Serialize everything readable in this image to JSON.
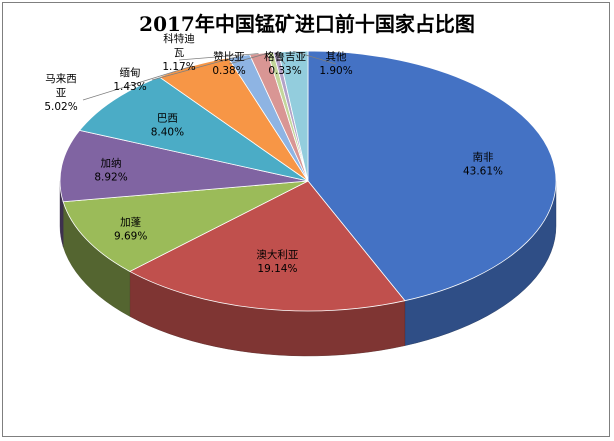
{
  "chart_data": {
    "type": "pie",
    "title": "2017年中国锰矿进口前十国家占比图",
    "unit": "%",
    "slices": [
      {
        "name": "南非",
        "value": 43.61,
        "label": "43.61%",
        "color": "#4472c4"
      },
      {
        "name": "澳大利亚",
        "value": 19.14,
        "label": "19.14%",
        "color": "#c0504d"
      },
      {
        "name": "加蓬",
        "value": 9.69,
        "label": "9.69%",
        "color": "#9bbb59"
      },
      {
        "name": "加纳",
        "value": 8.92,
        "label": "8.92%",
        "color": "#8064a2"
      },
      {
        "name": "巴西",
        "value": 8.4,
        "label": "8.40%",
        "color": "#4bacc6"
      },
      {
        "name": "马来西亚",
        "value": 5.02,
        "label": "5.02%",
        "color": "#f79646"
      },
      {
        "name": "缅甸",
        "value": 1.43,
        "label": "1.43%",
        "color": "#8eb4e3"
      },
      {
        "name": "科特迪瓦",
        "value": 1.17,
        "label": "1.17%",
        "color": "#d99694"
      },
      {
        "name": "赞比亚",
        "value": 0.38,
        "label": "0.38%",
        "color": "#c3d69b"
      },
      {
        "name": "格鲁吉亚",
        "value": 0.33,
        "label": "0.33%",
        "color": "#b3a2c7"
      },
      {
        "name": "其他",
        "value": 1.9,
        "label": "1.90%",
        "color": "#93cddd"
      }
    ]
  }
}
